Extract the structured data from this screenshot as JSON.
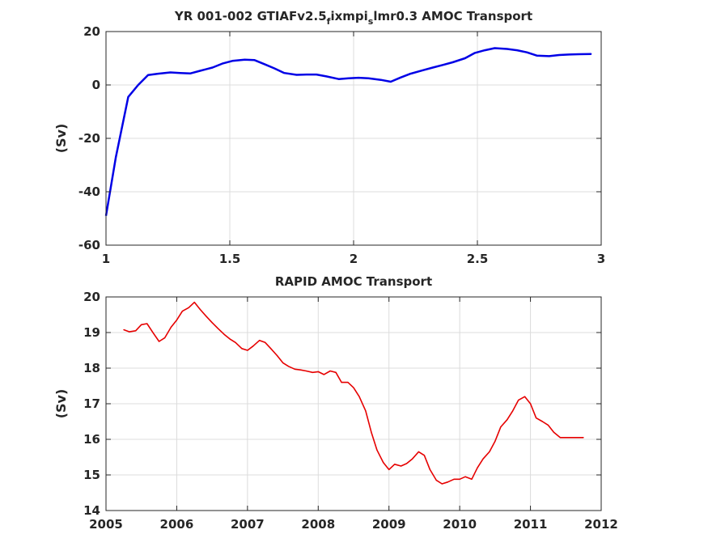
{
  "chart_data": [
    {
      "type": "line",
      "title_parts": [
        {
          "text": "YR 001-002 GTIAFv2.5"
        },
        {
          "text": "f",
          "sub": true
        },
        {
          "text": "ixmpi"
        },
        {
          "text": "s",
          "sub": true
        },
        {
          "text": "lmr0.3 AMOC Transport"
        }
      ],
      "xlabel": "",
      "ylabel": "(Sv)",
      "xlim": [
        1,
        3
      ],
      "ylim": [
        -60,
        20
      ],
      "xticks": [
        1,
        1.5,
        2,
        2.5,
        3
      ],
      "xtick_labels": [
        "1",
        "1.5",
        "2",
        "2.5",
        "3"
      ],
      "yticks": [
        -60,
        -40,
        -20,
        0,
        20
      ],
      "ytick_labels": [
        "-60",
        "-40",
        "-20",
        "0",
        "20"
      ],
      "grid": true,
      "series": [
        {
          "color": "#0000e6",
          "x": [
            1.0,
            1.04,
            1.09,
            1.13,
            1.17,
            1.21,
            1.26,
            1.3,
            1.34,
            1.38,
            1.43,
            1.47,
            1.51,
            1.56,
            1.6,
            1.64,
            1.68,
            1.72,
            1.77,
            1.81,
            1.85,
            1.89,
            1.94,
            1.98,
            2.02,
            2.06,
            2.11,
            2.15,
            2.19,
            2.23,
            2.28,
            2.32,
            2.36,
            2.4,
            2.45,
            2.49,
            2.53,
            2.57,
            2.62,
            2.66,
            2.7,
            2.74,
            2.79,
            2.83,
            2.87,
            2.91,
            2.96
          ],
          "y": [
            -49,
            -27,
            -4.5,
            0,
            3.7,
            4.2,
            4.7,
            4.5,
            4.3,
            5.3,
            6.5,
            8.0,
            9.0,
            9.5,
            9.3,
            7.8,
            6.2,
            4.5,
            3.8,
            3.9,
            3.9,
            3.2,
            2.2,
            2.5,
            2.7,
            2.5,
            1.9,
            1.2,
            2.8,
            4.2,
            5.5,
            6.5,
            7.5,
            8.5,
            10.0,
            12.0,
            13.0,
            13.8,
            13.5,
            13.0,
            12.2,
            11.0,
            10.8,
            11.2,
            11.4,
            11.5,
            11.6
          ]
        }
      ]
    },
    {
      "type": "line",
      "title": "RAPID AMOC Transport",
      "xlabel": "",
      "ylabel": "(Sv)",
      "xlim": [
        2005,
        2012
      ],
      "ylim": [
        14,
        20
      ],
      "xticks": [
        2005,
        2006,
        2007,
        2008,
        2009,
        2010,
        2011,
        2012
      ],
      "xtick_labels": [
        "2005",
        "2006",
        "2007",
        "2008",
        "2009",
        "2010",
        "2011",
        "2012"
      ],
      "yticks": [
        14,
        15,
        16,
        17,
        18,
        19,
        20
      ],
      "ytick_labels": [
        "14",
        "15",
        "16",
        "17",
        "18",
        "19",
        "20"
      ],
      "grid": true,
      "series": [
        {
          "color": "#e60000",
          "x": [
            2005.25,
            2005.33,
            2005.42,
            2005.5,
            2005.58,
            2005.67,
            2005.75,
            2005.83,
            2005.92,
            2006.0,
            2006.08,
            2006.17,
            2006.25,
            2006.33,
            2006.42,
            2006.5,
            2006.58,
            2006.67,
            2006.75,
            2006.83,
            2006.92,
            2007.0,
            2007.08,
            2007.17,
            2007.25,
            2007.33,
            2007.42,
            2007.5,
            2007.58,
            2007.67,
            2007.75,
            2007.83,
            2007.92,
            2008.0,
            2008.08,
            2008.17,
            2008.25,
            2008.33,
            2008.42,
            2008.5,
            2008.58,
            2008.67,
            2008.75,
            2008.83,
            2008.92,
            2009.0,
            2009.08,
            2009.17,
            2009.25,
            2009.33,
            2009.42,
            2009.5,
            2009.58,
            2009.67,
            2009.75,
            2009.83,
            2009.92,
            2010.0,
            2010.08,
            2010.17,
            2010.25,
            2010.33,
            2010.42,
            2010.5,
            2010.58,
            2010.67,
            2010.75,
            2010.83,
            2010.92,
            2011.0,
            2011.08,
            2011.17,
            2011.25,
            2011.33,
            2011.42,
            2011.5,
            2011.58,
            2011.67,
            2011.75
          ],
          "y": [
            19.08,
            19.02,
            19.05,
            19.22,
            19.25,
            18.98,
            18.75,
            18.85,
            19.15,
            19.35,
            19.6,
            19.7,
            19.85,
            19.65,
            19.45,
            19.28,
            19.12,
            18.95,
            18.82,
            18.72,
            18.55,
            18.5,
            18.62,
            18.78,
            18.72,
            18.55,
            18.35,
            18.15,
            18.05,
            17.97,
            17.95,
            17.92,
            17.88,
            17.9,
            17.82,
            17.92,
            17.88,
            17.6,
            17.6,
            17.45,
            17.2,
            16.8,
            16.2,
            15.7,
            15.35,
            15.15,
            15.3,
            15.25,
            15.32,
            15.45,
            15.65,
            15.55,
            15.15,
            14.85,
            14.75,
            14.8,
            14.88,
            14.88,
            14.95,
            14.88,
            15.2,
            15.45,
            15.65,
            15.95,
            16.35,
            16.55,
            16.8,
            17.1,
            17.2,
            17.0,
            16.6,
            16.5,
            16.4,
            16.2,
            16.05,
            16.05,
            16.05,
            16.05,
            16.05
          ]
        }
      ]
    }
  ]
}
